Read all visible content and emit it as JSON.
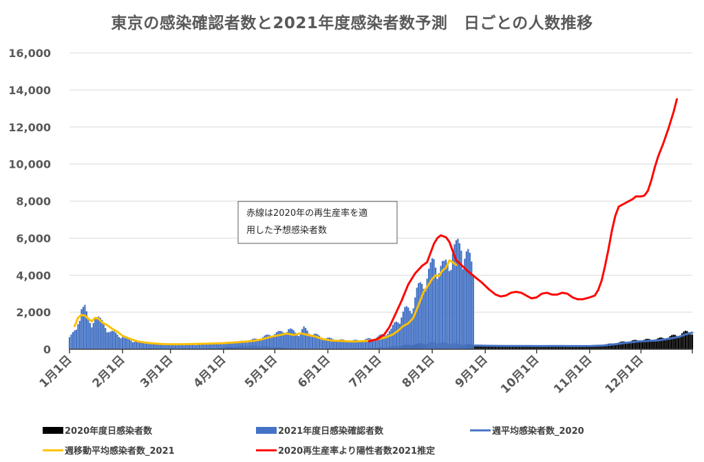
{
  "chart_data": {
    "type": "bar",
    "title": "東京の感染確認者数と2021年度感染者数予測　日ごとの人数推移",
    "ylim": [
      0,
      16000
    ],
    "y_ticks": [
      0,
      2000,
      4000,
      6000,
      8000,
      10000,
      12000,
      14000,
      16000
    ],
    "y_tick_labels": [
      "0",
      "2,000",
      "4,000",
      "6,000",
      "8,000",
      "10,000",
      "12,000",
      "14,000",
      "16,000"
    ],
    "x_axis": {
      "start_day": 0,
      "end_day": 364
    },
    "x_ticks": [
      {
        "label": "1月1日",
        "day": 0
      },
      {
        "label": "2月1日",
        "day": 31
      },
      {
        "label": "3月1日",
        "day": 59
      },
      {
        "label": "4月1日",
        "day": 90
      },
      {
        "label": "5月1日",
        "day": 120
      },
      {
        "label": "6月1日",
        "day": 151
      },
      {
        "label": "7月1日",
        "day": 181
      },
      {
        "label": "8月1日",
        "day": 212
      },
      {
        "label": "9月1日",
        "day": 243
      },
      {
        "label": "10月1日",
        "day": 273
      },
      {
        "label": "11月1日",
        "day": 304
      },
      {
        "label": "12月1日",
        "day": 334
      }
    ],
    "grid": true,
    "legend_position": "bottom",
    "annotation": {
      "line1": "赤線は2020年の再生産率を適",
      "line2": "用した予想感染者数"
    },
    "series": [
      {
        "name": "2020年度日感染者数",
        "kind": "bar",
        "color": "#000000",
        "points": [
          [
            0,
            0
          ],
          [
            60,
            5
          ],
          [
            85,
            30
          ],
          [
            92,
            100
          ],
          [
            100,
            150
          ],
          [
            107,
            190
          ],
          [
            115,
            140
          ],
          [
            122,
            90
          ],
          [
            131,
            30
          ],
          [
            145,
            15
          ],
          [
            160,
            20
          ],
          [
            175,
            60
          ],
          [
            185,
            110
          ],
          [
            195,
            200
          ],
          [
            205,
            280
          ],
          [
            215,
            350
          ],
          [
            222,
            300
          ],
          [
            232,
            240
          ],
          [
            243,
            170
          ],
          [
            255,
            160
          ],
          [
            273,
            170
          ],
          [
            285,
            180
          ],
          [
            300,
            150
          ],
          [
            310,
            200
          ],
          [
            318,
            290
          ],
          [
            326,
            400
          ],
          [
            334,
            460
          ],
          [
            344,
            520
          ],
          [
            352,
            650
          ],
          [
            360,
            850
          ],
          [
            364,
            900
          ]
        ]
      },
      {
        "name": "2021年度日感染確認者数",
        "kind": "bar",
        "color": "#4472C4",
        "points": [
          [
            0,
            800
          ],
          [
            4,
            900
          ],
          [
            6,
            1500
          ],
          [
            7,
            2450
          ],
          [
            8,
            2520
          ],
          [
            9,
            2300
          ],
          [
            10,
            1800
          ],
          [
            11,
            1350
          ],
          [
            13,
            1100
          ],
          [
            14,
            1500
          ],
          [
            15,
            2050
          ],
          [
            16,
            1750
          ],
          [
            18,
            1450
          ],
          [
            21,
            1150
          ],
          [
            24,
            900
          ],
          [
            28,
            750
          ],
          [
            31,
            650
          ],
          [
            35,
            500
          ],
          [
            40,
            380
          ],
          [
            47,
            320
          ],
          [
            55,
            280
          ],
          [
            60,
            260
          ],
          [
            66,
            250
          ],
          [
            75,
            260
          ],
          [
            82,
            300
          ],
          [
            90,
            330
          ],
          [
            96,
            360
          ],
          [
            102,
            400
          ],
          [
            106,
            460
          ],
          [
            110,
            530
          ],
          [
            114,
            640
          ],
          [
            117,
            720
          ],
          [
            120,
            810
          ],
          [
            123,
            850
          ],
          [
            125,
            920
          ],
          [
            128,
            1000
          ],
          [
            131,
            900
          ],
          [
            134,
            800
          ],
          [
            137,
            1050
          ],
          [
            140,
            870
          ],
          [
            143,
            760
          ],
          [
            146,
            650
          ],
          [
            150,
            560
          ],
          [
            155,
            500
          ],
          [
            160,
            450
          ],
          [
            165,
            430
          ],
          [
            170,
            450
          ],
          [
            174,
            500
          ],
          [
            178,
            560
          ],
          [
            181,
            650
          ],
          [
            184,
            750
          ],
          [
            186,
            920
          ],
          [
            188,
            980
          ],
          [
            190,
            1250
          ],
          [
            193,
            1650
          ],
          [
            196,
            1950
          ],
          [
            199,
            2050
          ],
          [
            201,
            2400
          ],
          [
            203,
            2900
          ],
          [
            205,
            3150
          ],
          [
            207,
            3500
          ],
          [
            209,
            3800
          ],
          [
            211,
            4000
          ],
          [
            213,
            4400
          ],
          [
            215,
            4500
          ],
          [
            217,
            4200
          ],
          [
            219,
            4050
          ],
          [
            221,
            4450
          ],
          [
            223,
            4850
          ],
          [
            224,
            5050
          ],
          [
            226,
            5000
          ],
          [
            228,
            5250
          ],
          [
            229,
            5500
          ],
          [
            231,
            5050
          ],
          [
            233,
            4650
          ],
          [
            235,
            4200
          ],
          [
            236,
            3950
          ],
          [
            237,
            0
          ]
        ]
      },
      {
        "name": "週平均感染者数_2020",
        "kind": "line",
        "color": "#4472C4",
        "points": [
          [
            237,
            200
          ],
          [
            245,
            185
          ],
          [
            255,
            180
          ],
          [
            265,
            175
          ],
          [
            275,
            170
          ],
          [
            285,
            180
          ],
          [
            295,
            170
          ],
          [
            305,
            175
          ],
          [
            312,
            200
          ],
          [
            318,
            260
          ],
          [
            325,
            340
          ],
          [
            332,
            420
          ],
          [
            338,
            450
          ],
          [
            344,
            480
          ],
          [
            350,
            560
          ],
          [
            356,
            660
          ],
          [
            360,
            800
          ],
          [
            364,
            900
          ]
        ]
      },
      {
        "name": "週移動平均感染者数_2021",
        "kind": "line",
        "color": "#FFC000",
        "points": [
          [
            3,
            1250
          ],
          [
            5,
            1700
          ],
          [
            7,
            1850
          ],
          [
            9,
            1820
          ],
          [
            11,
            1650
          ],
          [
            13,
            1500
          ],
          [
            15,
            1700
          ],
          [
            17,
            1650
          ],
          [
            19,
            1450
          ],
          [
            22,
            1300
          ],
          [
            25,
            1100
          ],
          [
            28,
            950
          ],
          [
            31,
            720
          ],
          [
            35,
            580
          ],
          [
            40,
            420
          ],
          [
            47,
            330
          ],
          [
            55,
            280
          ],
          [
            62,
            270
          ],
          [
            70,
            280
          ],
          [
            80,
            300
          ],
          [
            90,
            330
          ],
          [
            100,
            390
          ],
          [
            108,
            460
          ],
          [
            113,
            550
          ],
          [
            118,
            680
          ],
          [
            123,
            770
          ],
          [
            127,
            850
          ],
          [
            131,
            770
          ],
          [
            135,
            860
          ],
          [
            139,
            780
          ],
          [
            143,
            700
          ],
          [
            148,
            550
          ],
          [
            153,
            470
          ],
          [
            160,
            440
          ],
          [
            166,
            420
          ],
          [
            172,
            440
          ],
          [
            177,
            480
          ],
          [
            181,
            560
          ],
          [
            185,
            650
          ],
          [
            189,
            800
          ],
          [
            192,
            1000
          ],
          [
            195,
            1250
          ],
          [
            198,
            1400
          ],
          [
            201,
            1700
          ],
          [
            204,
            2400
          ],
          [
            207,
            3100
          ],
          [
            210,
            3500
          ],
          [
            212,
            3800
          ],
          [
            214,
            4000
          ],
          [
            216,
            3950
          ],
          [
            218,
            4250
          ],
          [
            220,
            4400
          ],
          [
            222,
            4800
          ],
          [
            224,
            4700
          ],
          [
            226,
            4550
          ]
        ]
      },
      {
        "name": "2020再生産率より陽性者数2021推定",
        "kind": "line",
        "color": "#FF0000",
        "points": [
          [
            175,
            430
          ],
          [
            180,
            550
          ],
          [
            184,
            800
          ],
          [
            187,
            1200
          ],
          [
            190,
            1800
          ],
          [
            194,
            2600
          ],
          [
            198,
            3500
          ],
          [
            202,
            4100
          ],
          [
            206,
            4500
          ],
          [
            209,
            4700
          ],
          [
            211,
            5200
          ],
          [
            213,
            5700
          ],
          [
            215,
            6000
          ],
          [
            217,
            6150
          ],
          [
            220,
            6050
          ],
          [
            222,
            5800
          ],
          [
            224,
            5300
          ],
          [
            226,
            4800
          ],
          [
            229,
            4550
          ],
          [
            233,
            4200
          ],
          [
            237,
            3900
          ],
          [
            241,
            3600
          ],
          [
            245,
            3250
          ],
          [
            249,
            2950
          ],
          [
            252,
            2850
          ],
          [
            255,
            2900
          ],
          [
            258,
            3050
          ],
          [
            261,
            3100
          ],
          [
            264,
            3050
          ],
          [
            267,
            2900
          ],
          [
            270,
            2750
          ],
          [
            273,
            2800
          ],
          [
            276,
            3000
          ],
          [
            279,
            3050
          ],
          [
            282,
            2950
          ],
          [
            285,
            2950
          ],
          [
            288,
            3050
          ],
          [
            291,
            3000
          ],
          [
            294,
            2800
          ],
          [
            297,
            2700
          ],
          [
            300,
            2700
          ],
          [
            304,
            2800
          ],
          [
            307,
            2900
          ],
          [
            309,
            3200
          ],
          [
            311,
            3700
          ],
          [
            313,
            4500
          ],
          [
            315,
            5400
          ],
          [
            317,
            6400
          ],
          [
            319,
            7200
          ],
          [
            321,
            7700
          ],
          [
            324,
            7850
          ],
          [
            326,
            7950
          ],
          [
            329,
            8100
          ],
          [
            331,
            8250
          ],
          [
            334,
            8250
          ],
          [
            336,
            8300
          ],
          [
            338,
            8550
          ],
          [
            340,
            9100
          ],
          [
            342,
            9800
          ],
          [
            344,
            10400
          ],
          [
            347,
            11100
          ],
          [
            350,
            11900
          ],
          [
            353,
            12800
          ],
          [
            355,
            13500
          ]
        ]
      }
    ]
  }
}
